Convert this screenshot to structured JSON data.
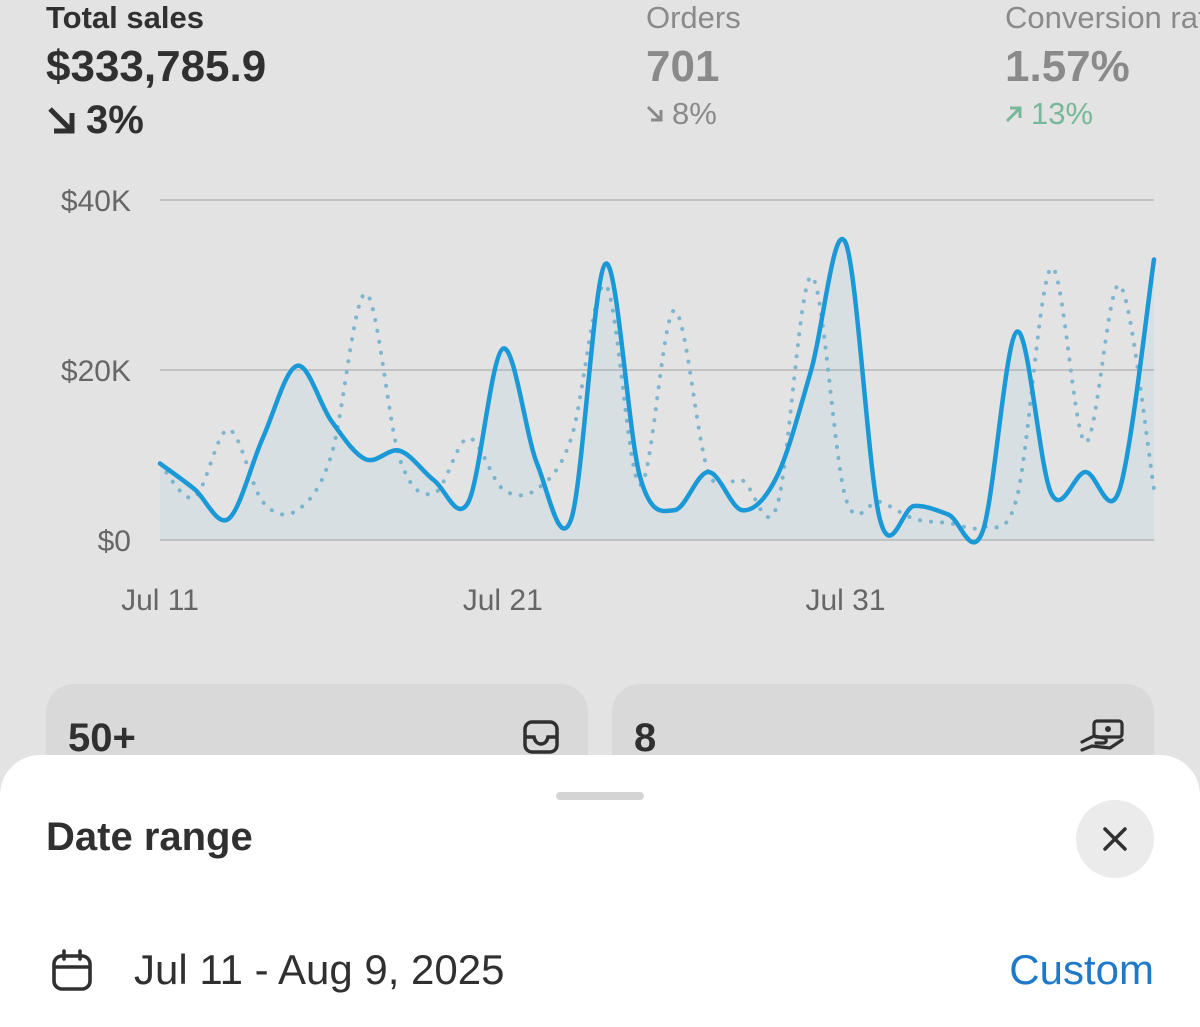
{
  "metrics": {
    "total_sales": {
      "label": "Total sales",
      "value": "$333,785.9",
      "change": "3%",
      "direction": "down"
    },
    "orders": {
      "label": "Orders",
      "value": "701",
      "change": "8%",
      "direction": "down"
    },
    "conversion": {
      "label": "Conversion rate",
      "value": "1.57%",
      "change": "13%",
      "direction": "up"
    }
  },
  "chart_data": {
    "type": "line",
    "ylim": [
      0,
      40000
    ],
    "yticks": [
      "$0",
      "$20K",
      "$40K"
    ],
    "xticks": [
      "Jul 11",
      "Jul 21",
      "Jul 31"
    ],
    "x": [
      "Jul 11",
      "Jul 12",
      "Jul 13",
      "Jul 14",
      "Jul 15",
      "Jul 16",
      "Jul 17",
      "Jul 18",
      "Jul 19",
      "Jul 20",
      "Jul 21",
      "Jul 22",
      "Jul 23",
      "Jul 24",
      "Jul 25",
      "Jul 26",
      "Jul 27",
      "Jul 28",
      "Jul 29",
      "Jul 30",
      "Jul 31",
      "Aug 1",
      "Aug 2",
      "Aug 3",
      "Aug 4",
      "Aug 5",
      "Aug 6",
      "Aug 7",
      "Aug 8",
      "Aug 9"
    ],
    "grid": true,
    "series": [
      {
        "style": "solid",
        "color": "#1a99d6",
        "values": [
          9000,
          6000,
          2500,
          12000,
          20500,
          14000,
          9500,
          10500,
          7000,
          4500,
          22500,
          9000,
          2500,
          32500,
          7500,
          3500,
          8000,
          3500,
          7500,
          20000,
          35000,
          2500,
          4000,
          3000,
          1000,
          24500,
          5500,
          8000,
          6000,
          33000
        ]
      },
      {
        "style": "dotted",
        "color": "#7fb6cf",
        "values": [
          9000,
          5000,
          13000,
          4500,
          3500,
          10000,
          29000,
          9500,
          5500,
          12000,
          6000,
          6000,
          12000,
          30000,
          6500,
          27000,
          8000,
          7000,
          4000,
          31000,
          5000,
          4500,
          2500,
          2000,
          1500,
          5000,
          32000,
          11500,
          30000,
          6000
        ]
      }
    ]
  },
  "cards": [
    {
      "value": "50+",
      "icon": "inbox-icon"
    },
    {
      "value": "8",
      "icon": "hand-cash-icon"
    }
  ],
  "sheet": {
    "title": "Date range",
    "date_value": "Jul 11 - Aug 9, 2025",
    "custom_label": "Custom"
  }
}
